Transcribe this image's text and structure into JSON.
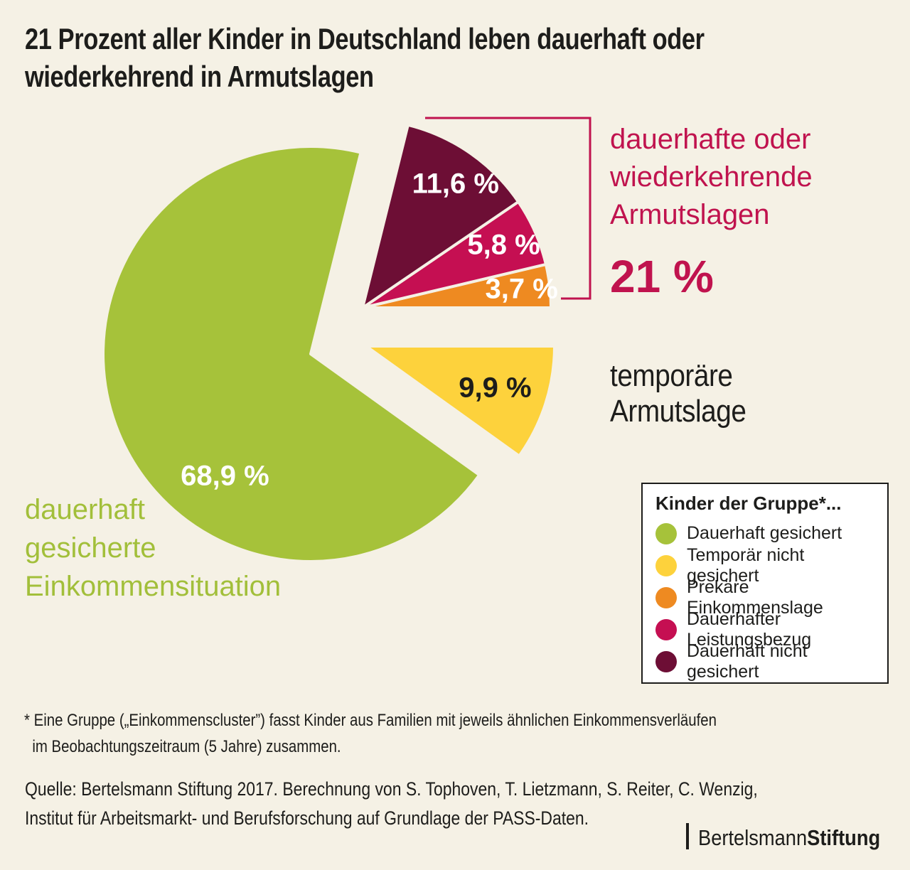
{
  "background_color": "#f5f1e5",
  "title": {
    "text": "21 Prozent aller Kinder in Deutschland leben dauerhaft oder\nwiederkehrend in Armutslagen",
    "color": "#1d1d1b"
  },
  "chart_data": {
    "type": "pie",
    "title": "21 Prozent aller Kinder in Deutschland leben dauerhaft oder wiederkehrend in Armutslagen",
    "unit": "%",
    "slices": [
      {
        "name": "Dauerhaft gesichert",
        "value": 68.9,
        "value_label": "68,9 %",
        "color": "#a6c23a",
        "label_color": "#ffffff"
      },
      {
        "name": "Temporär nicht gesichert",
        "value": 9.9,
        "value_label": "9,9 %",
        "color": "#fdd23c",
        "label_color": "#1d1d1b"
      },
      {
        "name": "Prekäre Einkommenslage",
        "value": 3.7,
        "value_label": "3,7 %",
        "color": "#ee8a21",
        "label_color": "#ffffff"
      },
      {
        "name": "Dauerhafter Leistungsbezug",
        "value": 5.8,
        "value_label": "5,8 %",
        "color": "#c50f52",
        "label_color": "#ffffff"
      },
      {
        "name": "Dauerhaft nicht gesichert",
        "value": 11.6,
        "value_label": "11,6 %",
        "color": "#6d0e35",
        "label_color": "#ffffff"
      }
    ],
    "groups": [
      {
        "label": "dauerhafte oder\nwiederkehrende\nArmutslagen",
        "total_label": "21 %",
        "color": "#c0134e",
        "members": [
          "Prekäre Einkommenslage",
          "Dauerhafter Leistungsbezug",
          "Dauerhaft nicht gesichert"
        ]
      },
      {
        "label": "temporäre Armutslage",
        "color": "#1d1d1b",
        "members": [
          "Temporär nicht gesichert"
        ]
      },
      {
        "label": "dauerhaft\ngesicherte\nEinkommensituation",
        "color": "#a2bf3a",
        "members": [
          "Dauerhaft gesichert"
        ]
      }
    ],
    "legend_position": "bottom-right"
  },
  "legend": {
    "title": "Kinder der Gruppe*...",
    "items": [
      {
        "label": "Dauerhaft gesichert",
        "color": "#a6c23a"
      },
      {
        "label": "Temporär nicht gesichert",
        "color": "#fdd23c"
      },
      {
        "label": "Prekäre Einkommenslage",
        "color": "#ee8a21"
      },
      {
        "label": "Dauerhafter Leistungsbezug",
        "color": "#c50f52"
      },
      {
        "label": "Dauerhaft nicht gesichert",
        "color": "#6d0e35"
      }
    ]
  },
  "footnote": {
    "text": "* Eine Gruppe („Einkommenscluster”) fasst Kinder aus Familien mit jeweils ähnlichen Einkommensverläufen\n  im Beobachtungszeitraum (5 Jahre) zusammen."
  },
  "source": {
    "text": "Quelle: Bertelsmann Stiftung 2017. Berechnung von S. Tophoven, T. Lietzmann, S. Reiter, C. Wenzig,\nInstitut für Arbeitsmarkt- und Berufsforschung auf Grundlage der PASS-Daten."
  },
  "brand": {
    "name_regular": "Bertelsmann",
    "name_bold": "Stiftung"
  }
}
